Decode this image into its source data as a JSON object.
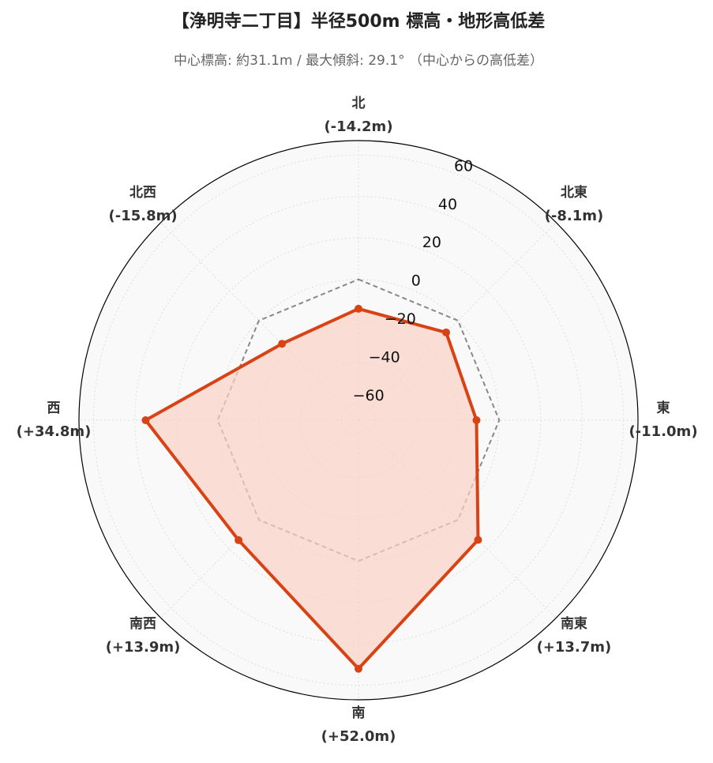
{
  "chart_data": {
    "type": "radar",
    "title": "【浄明寺二丁目】半径500m 標高・地形高低差",
    "subtitle": "中心標高: 約31.1m / 最大傾斜: 29.1° （中心からの高低差）",
    "categories": [
      "北",
      "北東",
      "東",
      "南東",
      "南",
      "南西",
      "西",
      "北西"
    ],
    "values": [
      -14.2,
      -8.1,
      -11.0,
      13.7,
      52.0,
      13.9,
      34.8,
      -15.8
    ],
    "value_labels": [
      "(-14.2m)",
      "(-8.1m)",
      "(-11.0m)",
      "(+13.7m)",
      "(+52.0m)",
      "(+13.9m)",
      "(+34.8m)",
      "(-15.8m)"
    ],
    "color": "#d84315",
    "fill_color": "#fbd3c7",
    "reference_line": {
      "value": 0,
      "color": "#888888"
    },
    "ylim": [
      -68,
      67
    ],
    "yticks": [
      {
        "value": -60,
        "label": "−60"
      },
      {
        "value": -40,
        "label": "−40"
      },
      {
        "value": -20,
        "label": "−20"
      },
      0,
      20,
      40,
      60
    ],
    "grid": true
  }
}
